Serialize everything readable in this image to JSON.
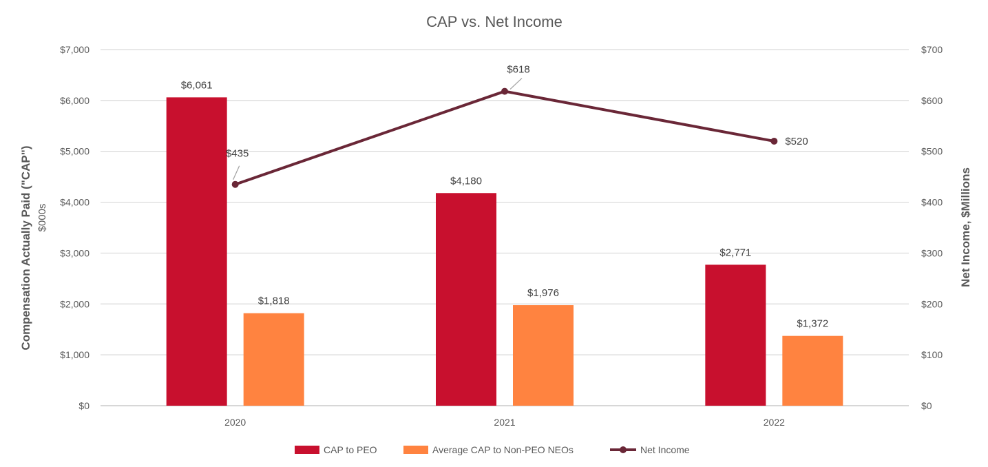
{
  "chart_data": {
    "type": "bar",
    "title": "CAP vs. Net Income",
    "categories": [
      "2020",
      "2021",
      "2022"
    ],
    "series": [
      {
        "name": "CAP to PEO",
        "kind": "bar",
        "axis": "left",
        "color": "#C8102E",
        "values": [
          6061,
          4180,
          2771
        ],
        "labels": [
          "$6,061",
          "$4,180",
          "$2,771"
        ]
      },
      {
        "name": "Average CAP to Non-PEO NEOs",
        "kind": "bar",
        "axis": "left",
        "color": "#FF8340",
        "values": [
          1818,
          1976,
          1372
        ],
        "labels": [
          "$1,818",
          "$1,976",
          "$1,372"
        ]
      },
      {
        "name": "Net Income",
        "kind": "line",
        "axis": "right",
        "color": "#6A2737",
        "values": [
          435,
          618,
          520
        ],
        "labels": [
          "$435",
          "$618",
          "$520"
        ]
      }
    ],
    "y_left": {
      "label": "Compensation Actually Paid (\"CAP\")",
      "sublabel": "$000s",
      "ylim": [
        0,
        7000
      ],
      "ticks": [
        0,
        1000,
        2000,
        3000,
        4000,
        5000,
        6000,
        7000
      ],
      "tick_labels": [
        "$0",
        "$1,000",
        "$2,000",
        "$3,000",
        "$4,000",
        "$5,000",
        "$6,000",
        "$7,000"
      ]
    },
    "y_right": {
      "label": "Net Income, $Millions",
      "ylim": [
        0,
        700
      ],
      "ticks": [
        0,
        100,
        200,
        300,
        400,
        500,
        600,
        700
      ],
      "tick_labels": [
        "$0",
        "$100",
        "$200",
        "$300",
        "$400",
        "$500",
        "$600",
        "$700"
      ]
    },
    "grid": true,
    "legend_position": "bottom"
  }
}
